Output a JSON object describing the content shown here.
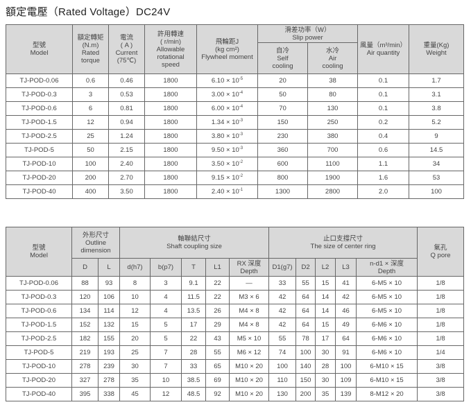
{
  "title": "額定電壓（Rated Voltage）DC24V",
  "table1": {
    "headers": {
      "model": "型號\nModel",
      "torque": "額定轉矩\n(N.m)\nRated\ntorque",
      "current": "電流\n( A )\nCurrent\n(75℃)",
      "speed": "許用轉速\n( r/min)\nAllowable\nrotational\nspeed",
      "flywheel": "飛輪距J\n(kg cm²)\nFlywheel moment",
      "slip_power": "滑差功率（W）\nSlip power",
      "self_cooling": "自冷\nSelf\ncooling",
      "air_cooling": "水冷\nAir\ncooling",
      "air_quantity": "風量（m³/min）\nAir quantity",
      "weight": "重量(Kg)\nWeight"
    },
    "rows": [
      {
        "model": "TJ-POD-0.06",
        "torque": "0.6",
        "current": "0.46",
        "speed": "1800",
        "flywheel": "6.10 × 10",
        "exp": "-5",
        "self": "20",
        "air": "38",
        "airq": "0.1",
        "weight": "1.7"
      },
      {
        "model": "TJ-POD-0.3",
        "torque": "3",
        "current": "0.53",
        "speed": "1800",
        "flywheel": "3.00 × 10",
        "exp": "-4",
        "self": "50",
        "air": "80",
        "airq": "0.1",
        "weight": "3.1"
      },
      {
        "model": "TJ-POD-0.6",
        "torque": "6",
        "current": "0.81",
        "speed": "1800",
        "flywheel": "6.00 × 10",
        "exp": "-4",
        "self": "70",
        "air": "130",
        "airq": "0.1",
        "weight": "3.8"
      },
      {
        "model": "TJ-POD-1.5",
        "torque": "12",
        "current": "0.94",
        "speed": "1800",
        "flywheel": "1.34 × 10",
        "exp": "-3",
        "self": "150",
        "air": "250",
        "airq": "0.2",
        "weight": "5.2"
      },
      {
        "model": "TJ-POD-2.5",
        "torque": "25",
        "current": "1.24",
        "speed": "1800",
        "flywheel": "3.80 × 10",
        "exp": "-3",
        "self": "230",
        "air": "380",
        "airq": "0.4",
        "weight": "9"
      },
      {
        "model": "TJ-POD-5",
        "torque": "50",
        "current": "2.15",
        "speed": "1800",
        "flywheel": "9.50 × 10",
        "exp": "-3",
        "self": "360",
        "air": "700",
        "airq": "0.6",
        "weight": "14.5"
      },
      {
        "model": "TJ-POD-10",
        "torque": "100",
        "current": "2.40",
        "speed": "1800",
        "flywheel": "3.50 × 10",
        "exp": "-2",
        "self": "600",
        "air": "1100",
        "airq": "1.1",
        "weight": "34"
      },
      {
        "model": "TJ-POD-20",
        "torque": "200",
        "current": "2.70",
        "speed": "1800",
        "flywheel": "9.15 × 10",
        "exp": "-2",
        "self": "800",
        "air": "1900",
        "airq": "1.6",
        "weight": "53"
      },
      {
        "model": "TJ-POD-40",
        "torque": "400",
        "current": "3.50",
        "speed": "1800",
        "flywheel": "2.40 × 10",
        "exp": "-1",
        "self": "1300",
        "air": "2800",
        "airq": "2.0",
        "weight": "100"
      }
    ]
  },
  "table2": {
    "headers": {
      "model": "型號\nModel",
      "outline": "外形尺寸\nOutline\ndimension",
      "shaft": "軸聯結尺寸\nShaft coupling size",
      "center_ring": "止口支撐尺寸\nThe size of center ring",
      "q_pore": "氣孔\nQ pore",
      "sub": [
        "D",
        "L",
        "d(h7)",
        "b(p7)",
        "T",
        "L1",
        "RX 深度\nDepth",
        "D1(g7)",
        "D2",
        "L2",
        "L3",
        "n-d1 × 深度\nDepth"
      ]
    },
    "rows": [
      [
        "TJ-POD-0.06",
        "88",
        "93",
        "8",
        "3",
        "9.1",
        "22",
        "—",
        "33",
        "55",
        "15",
        "41",
        "6-M5 × 10",
        "1/8"
      ],
      [
        "TJ-POD-0.3",
        "120",
        "106",
        "10",
        "4",
        "11.5",
        "22",
        "M3 × 6",
        "42",
        "64",
        "14",
        "42",
        "6-M5 × 10",
        "1/8"
      ],
      [
        "TJ-POD-0.6",
        "134",
        "114",
        "12",
        "4",
        "13.5",
        "26",
        "M4 × 8",
        "42",
        "64",
        "14",
        "46",
        "6-M5 × 10",
        "1/8"
      ],
      [
        "TJ-POD-1.5",
        "152",
        "132",
        "15",
        "5",
        "17",
        "29",
        "M4 × 8",
        "42",
        "64",
        "15",
        "49",
        "6-M6 × 10",
        "1/8"
      ],
      [
        "TJ-POD-2.5",
        "182",
        "155",
        "20",
        "5",
        "22",
        "43",
        "M5 × 10",
        "55",
        "78",
        "17",
        "64",
        "6-M6 × 10",
        "1/8"
      ],
      [
        "TJ-POD-5",
        "219",
        "193",
        "25",
        "7",
        "28",
        "55",
        "M6 × 12",
        "74",
        "100",
        "30",
        "91",
        "6-M6 × 10",
        "1/4"
      ],
      [
        "TJ-POD-10",
        "278",
        "239",
        "30",
        "7",
        "33",
        "65",
        "M10 × 20",
        "100",
        "140",
        "28",
        "100",
        "6-M10 × 15",
        "3/8"
      ],
      [
        "TJ-POD-20",
        "327",
        "278",
        "35",
        "10",
        "38.5",
        "69",
        "M10 × 20",
        "110",
        "150",
        "30",
        "109",
        "6-M10 × 15",
        "3/8"
      ],
      [
        "TJ-POD-40",
        "395",
        "338",
        "45",
        "12",
        "48.5",
        "92",
        "M10 × 20",
        "130",
        "200",
        "35",
        "139",
        "8-M12 × 20",
        "3/8"
      ]
    ]
  }
}
